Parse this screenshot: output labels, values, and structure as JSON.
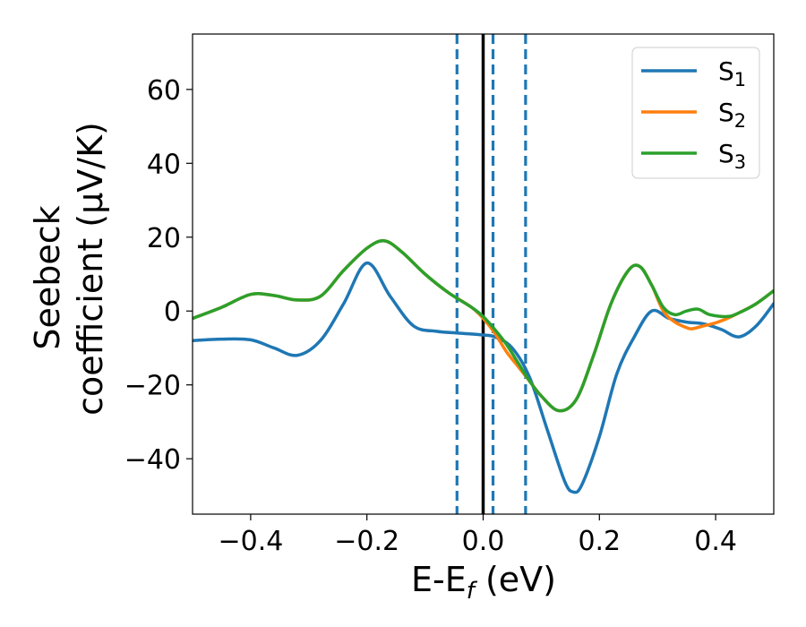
{
  "chart_data": {
    "type": "line",
    "xlabel": "E-E",
    "xlabel_sub": "f",
    "xlabel_unit": " (eV)",
    "ylabel_line1": "Seebeck",
    "ylabel_line2": "coefficient  (μV/K)",
    "xlim": [
      -0.5,
      0.5
    ],
    "ylim": [
      -55,
      75
    ],
    "xticks": [
      -0.4,
      -0.2,
      0.0,
      0.2,
      0.4
    ],
    "xtick_labels": [
      "−0.4",
      "−0.2",
      "0.0",
      "0.2",
      "0.4"
    ],
    "yticks": [
      -40,
      -20,
      0,
      20,
      40,
      60
    ],
    "ytick_labels": [
      "−40",
      "−20",
      "0",
      "20",
      "40",
      "60"
    ],
    "grid": false,
    "legend_position": "top-right",
    "vertical_lines": [
      {
        "x": 0.0,
        "style": "solid",
        "color": "#000000"
      },
      {
        "x": -0.045,
        "style": "dashed",
        "color": "#1f77b4"
      },
      {
        "x": 0.017,
        "style": "dashed",
        "color": "#1f77b4"
      },
      {
        "x": 0.073,
        "style": "dashed",
        "color": "#1f77b4"
      }
    ],
    "series": [
      {
        "name": "S",
        "name_sub": "1",
        "color": "#1f77b4",
        "x": [
          -0.5,
          -0.45,
          -0.4,
          -0.36,
          -0.32,
          -0.28,
          -0.24,
          -0.2,
          -0.16,
          -0.12,
          -0.08,
          -0.04,
          0.0,
          0.02,
          0.05,
          0.08,
          0.11,
          0.14,
          0.155,
          0.17,
          0.2,
          0.23,
          0.26,
          0.29,
          0.32,
          0.35,
          0.38,
          0.41,
          0.44,
          0.47,
          0.5
        ],
        "y": [
          -8,
          -7.6,
          -7.8,
          -10,
          -12,
          -8,
          2,
          13,
          4,
          -4,
          -5.5,
          -6,
          -6.5,
          -7,
          -10,
          -18,
          -32,
          -46,
          -49,
          -47,
          -34,
          -17,
          -7,
          0,
          -2,
          -3,
          -3.5,
          -5,
          -7,
          -4,
          2
        ]
      },
      {
        "name": "S",
        "name_sub": "2",
        "color": "#ff7f0e",
        "x": [
          -0.5,
          -0.45,
          -0.4,
          -0.36,
          -0.32,
          -0.28,
          -0.24,
          -0.2,
          -0.17,
          -0.14,
          -0.1,
          -0.06,
          -0.02,
          0.0,
          0.02,
          0.04,
          0.06,
          0.08,
          0.1,
          0.13,
          0.16,
          0.19,
          0.22,
          0.25,
          0.27,
          0.29,
          0.31,
          0.33,
          0.35,
          0.36,
          0.38,
          0.4,
          0.42,
          0.44,
          0.47,
          0.5
        ],
        "y": [
          -2,
          1,
          4.5,
          4.2,
          3,
          4,
          11,
          17,
          19,
          16,
          10,
          5,
          1,
          -2,
          -6,
          -11,
          -15,
          -19,
          -23,
          -27,
          -24,
          -12,
          2,
          11,
          12,
          7,
          0,
          -3,
          -4.5,
          -4.8,
          -4,
          -3.2,
          -2,
          -0.5,
          2,
          5.5
        ]
      },
      {
        "name": "S",
        "name_sub": "3",
        "color": "#2ca02c",
        "x": [
          -0.5,
          -0.45,
          -0.4,
          -0.36,
          -0.32,
          -0.28,
          -0.24,
          -0.2,
          -0.17,
          -0.14,
          -0.1,
          -0.06,
          -0.02,
          0.0,
          0.02,
          0.04,
          0.06,
          0.08,
          0.1,
          0.13,
          0.16,
          0.19,
          0.22,
          0.25,
          0.27,
          0.29,
          0.31,
          0.33,
          0.35,
          0.37,
          0.39,
          0.42,
          0.44,
          0.47,
          0.5
        ],
        "y": [
          -2,
          1,
          4.5,
          4.2,
          3,
          4,
          11,
          17,
          19,
          16,
          10,
          5,
          1,
          -1.5,
          -5,
          -9,
          -14,
          -19,
          -23,
          -27,
          -24,
          -12,
          2,
          11,
          12,
          7,
          1,
          -1,
          0,
          0.5,
          -1,
          -1.5,
          -0.5,
          2,
          5.5
        ]
      }
    ]
  }
}
